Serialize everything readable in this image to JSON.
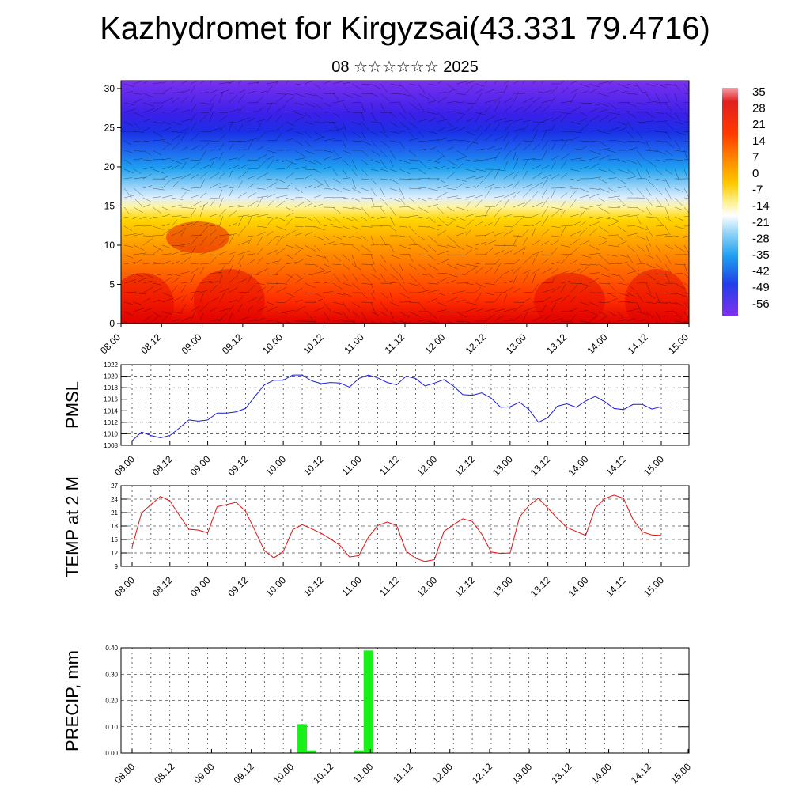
{
  "header": {
    "title": "Kazhydromet for Kirgyzsai(43.331 79.4716)",
    "subtitle": "08 ☆☆☆☆☆☆ 2025"
  },
  "colors": {
    "pmsl": "#1d1dd8",
    "temp": "#e11212",
    "precip": "#19f019"
  },
  "time_labels": [
    "08.00",
    "08.12",
    "09.00",
    "09.12",
    "10.00",
    "10.12",
    "11.00",
    "11.12",
    "12.00",
    "12.12",
    "13.00",
    "13.12",
    "14.00",
    "14.12",
    "15.00"
  ],
  "chart_data": [
    {
      "type": "heatmap",
      "title": "",
      "yticks": [
        0,
        5,
        10,
        15,
        20,
        25,
        30
      ],
      "ylim": [
        0,
        31
      ],
      "colorbar": [
        "35",
        "28",
        "21",
        "14",
        "7",
        "0",
        "-7",
        "-14",
        "-21",
        "-28",
        "-35",
        "-42",
        "-49",
        "-56"
      ]
    },
    {
      "type": "line",
      "ylabel": "PMSL",
      "ylim": [
        1008,
        1022
      ],
      "yticks": [
        1008,
        1010,
        1012,
        1014,
        1016,
        1018,
        1020,
        1022
      ],
      "values": [
        1008.8,
        1010.3,
        1009.7,
        1009.3,
        1009.7,
        1011.0,
        1012.4,
        1012.2,
        1012.4,
        1013.6,
        1013.6,
        1013.8,
        1014.4,
        1016.5,
        1018.5,
        1019.3,
        1019.3,
        1020.2,
        1020.2,
        1019.2,
        1018.7,
        1018.9,
        1018.8,
        1018.1,
        1019.6,
        1020.2,
        1019.7,
        1018.9,
        1018.5,
        1020.0,
        1019.6,
        1018.3,
        1018.8,
        1019.4,
        1018.3,
        1016.8,
        1016.7,
        1017.1,
        1016.2,
        1014.6,
        1014.7,
        1015.5,
        1014.2,
        1012.0,
        1012.8,
        1014.8,
        1015.2,
        1014.6,
        1015.7,
        1016.5,
        1015.6,
        1014.4,
        1014.2,
        1015.1,
        1015.1,
        1014.3,
        1014.7
      ]
    },
    {
      "type": "line",
      "ylabel": "TEMP at 2 M",
      "ylim": [
        9,
        27
      ],
      "yticks": [
        9,
        12,
        15,
        18,
        21,
        24,
        27
      ],
      "values": [
        13.3,
        20.9,
        22.8,
        24.6,
        23.6,
        20.4,
        17.3,
        17.1,
        16.5,
        22.3,
        22.8,
        23.3,
        21.3,
        17.0,
        12.5,
        10.9,
        12.3,
        17.2,
        18.3,
        17.4,
        16.4,
        15.1,
        13.7,
        11.1,
        11.4,
        15.5,
        18.1,
        18.9,
        18.1,
        12.4,
        10.8,
        10.1,
        10.5,
        16.8,
        18.3,
        19.6,
        19.0,
        16.2,
        12.2,
        11.9,
        12.0,
        20.0,
        22.6,
        24.2,
        22.0,
        19.7,
        17.7,
        16.8,
        15.9,
        22.0,
        24.1,
        24.9,
        24.2,
        19.5,
        16.7,
        16.0,
        15.9
      ]
    },
    {
      "type": "bar",
      "ylabel": "PRECIP, mm",
      "ylim": [
        0,
        0.4
      ],
      "yticks": [
        "0.00",
        "0.10",
        "0.20",
        "0.30",
        "0.40"
      ],
      "values": [
        0,
        0,
        0,
        0,
        0,
        0,
        0,
        0,
        0,
        0,
        0,
        0,
        0,
        0,
        0,
        0,
        0,
        0,
        0.11,
        0.01,
        0,
        0,
        0,
        0,
        0.01,
        0.39,
        0,
        0,
        0,
        0,
        0,
        0,
        0,
        0,
        0,
        0,
        0,
        0,
        0,
        0,
        0,
        0,
        0,
        0,
        0,
        0,
        0,
        0,
        0,
        0,
        0,
        0,
        0,
        0,
        0,
        0,
        0
      ]
    }
  ]
}
